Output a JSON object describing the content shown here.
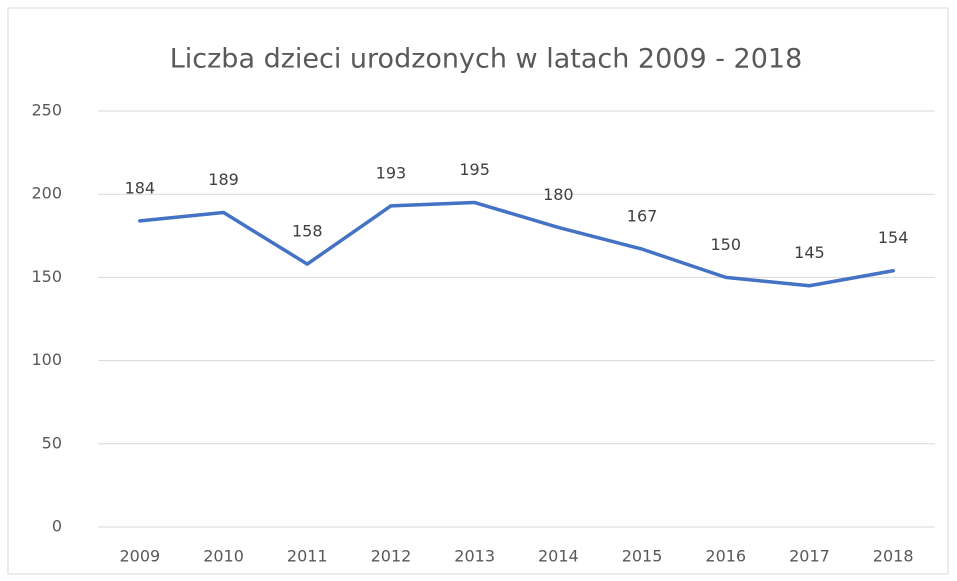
{
  "chart_data": {
    "type": "line",
    "title": "Liczba dzieci urodzonych w latach 2009 - 2018",
    "categories": [
      "2009",
      "2010",
      "2011",
      "2012",
      "2013",
      "2014",
      "2015",
      "2016",
      "2017",
      "2018"
    ],
    "values": [
      184,
      189,
      158,
      193,
      195,
      180,
      167,
      150,
      145,
      154
    ],
    "color": "#4472c4",
    "data_labels": true,
    "ylim": [
      0,
      250
    ],
    "yticks": [
      0,
      50,
      100,
      150,
      200,
      250
    ],
    "grid": true
  }
}
